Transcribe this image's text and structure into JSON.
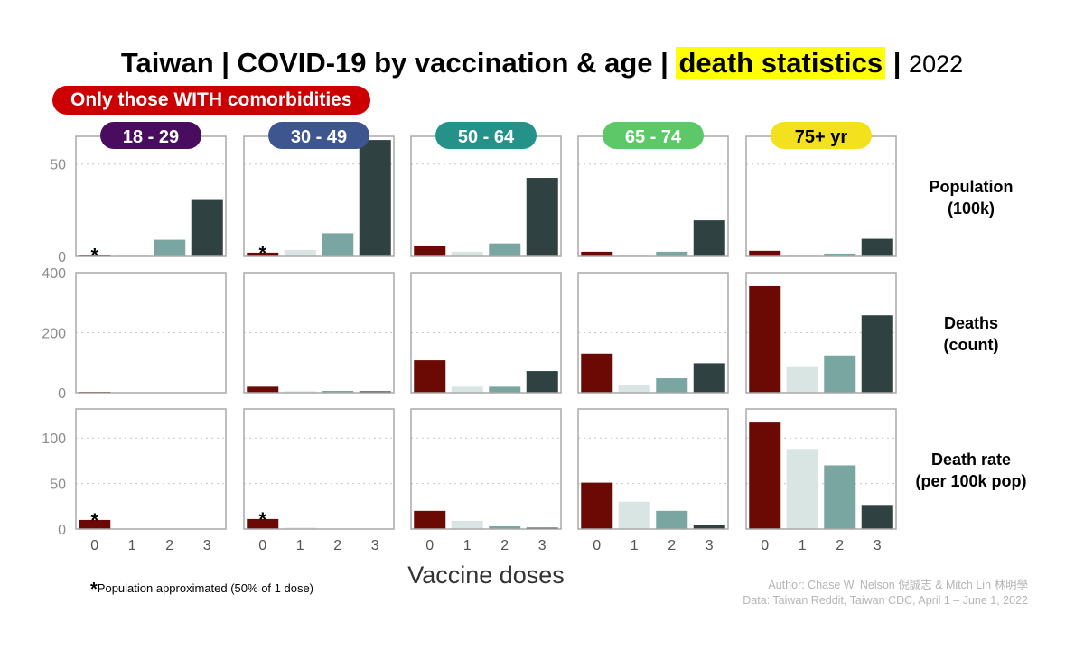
{
  "title": {
    "main": "Taiwan  |  COVID-19 by vaccination & age  |  ",
    "highlight": "death statistics",
    "separator": "  |  ",
    "year": "2022"
  },
  "badge": "Only those WITH comorbidities",
  "footnote": {
    "star": "*",
    "text": "Population approximated (50% of 1 dose)"
  },
  "credits": {
    "author": "Author: Chase W. Nelson 倪誠志 & Mitch Lin 林明學",
    "data": "Data: Taiwan Reddit, Taiwan CDC, April 1 – June 1, 2022"
  },
  "chart_data": {
    "type": "bar",
    "xlabel": "Vaccine doses",
    "categories": [
      "0",
      "1",
      "2",
      "3"
    ],
    "bar_colors": [
      "#6b0a05",
      "#d9e5e3",
      "#7aa6a1",
      "#2f4241"
    ],
    "panels": [
      {
        "label": "18 - 29",
        "color": "#4a0c5e"
      },
      {
        "label": "30 - 49",
        "color": "#3e5690"
      },
      {
        "label": "50 - 64",
        "color": "#25928a"
      },
      {
        "label": "65 - 74",
        "color": "#5cc867"
      },
      {
        "label": "75+ yr",
        "color": "#f2e11c"
      }
    ],
    "rows": [
      {
        "label": [
          "Population",
          "(100k)"
        ],
        "ylim": [
          0,
          65
        ],
        "yticks": [
          "0",
          "50"
        ],
        "ytick_values": [
          0,
          50
        ],
        "values": [
          [
            0.8,
            0.5,
            9,
            31
          ],
          [
            2,
            3.5,
            12.5,
            63
          ],
          [
            5.5,
            2.5,
            7,
            42.5
          ],
          [
            2.5,
            0.5,
            2.5,
            19.5
          ],
          [
            3,
            0.5,
            1.5,
            9.5
          ]
        ],
        "asterisk": [
          "*",
          "*",
          "",
          "",
          ""
        ]
      },
      {
        "label": [
          "Deaths",
          "(count)"
        ],
        "ylim": [
          0,
          400
        ],
        "yticks": [
          "0",
          "200",
          "400"
        ],
        "ytick_values": [
          0,
          200,
          400
        ],
        "values": [
          [
            3,
            0,
            0,
            0
          ],
          [
            20,
            5,
            6,
            5
          ],
          [
            108,
            20,
            20,
            72
          ],
          [
            130,
            24,
            48,
            98
          ],
          [
            355,
            88,
            124,
            258
          ]
        ],
        "asterisk": [
          "",
          "",
          "",
          "",
          ""
        ]
      },
      {
        "label": [
          "Death rate",
          "(per 100k pop)"
        ],
        "ylim": [
          0,
          132
        ],
        "yticks": [
          "0",
          "50",
          "100"
        ],
        "ytick_values": [
          0,
          50,
          100
        ],
        "values": [
          [
            10,
            0,
            0,
            0
          ],
          [
            11,
            1.5,
            0.5,
            0.1
          ],
          [
            20,
            9,
            3,
            1.5
          ],
          [
            51,
            30,
            20,
            4.5
          ],
          [
            117,
            88,
            70,
            26.5
          ]
        ],
        "asterisk": [
          "*",
          "*",
          "",
          "",
          ""
        ]
      }
    ]
  }
}
